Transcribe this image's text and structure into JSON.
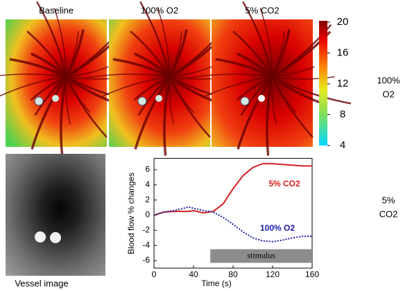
{
  "panels": {
    "titles": [
      "Baseline",
      "100% O2",
      "5% CO2"
    ],
    "vessel_title": "Vessel image"
  },
  "colorbar": {
    "lim": [
      4,
      20
    ],
    "ticks": [
      4,
      8,
      12,
      16,
      20
    ]
  },
  "side_labels": [
    [
      "100%",
      "O2"
    ],
    [
      "5%",
      "CO2"
    ]
  ],
  "chart_data": {
    "type": "line",
    "x": [
      0,
      10,
      20,
      30,
      35,
      40,
      50,
      60,
      70,
      80,
      90,
      100,
      110,
      120,
      130,
      140,
      150,
      160
    ],
    "series": [
      {
        "name": "5% CO2",
        "color": "#d42020",
        "dash": false,
        "values": [
          0,
          0.4,
          0.5,
          0.5,
          0.5,
          0.6,
          0.3,
          0.5,
          1.5,
          3.5,
          5.2,
          6.3,
          6.8,
          6.8,
          6.7,
          6.6,
          6.5,
          6.5
        ]
      },
      {
        "name": "100% O2",
        "color": "#1a1aa8",
        "dash": true,
        "values": [
          0,
          0.4,
          0.6,
          0.9,
          1.1,
          0.9,
          0.6,
          0.4,
          -0.3,
          -1.2,
          -2.2,
          -3.0,
          -3.4,
          -3.5,
          -3.3,
          -3.0,
          -2.8,
          -2.8
        ]
      }
    ],
    "xlim": [
      0,
      160
    ],
    "xticks": [
      0,
      40,
      80,
      120,
      160
    ],
    "ylim": [
      -7,
      7.5
    ],
    "yticks": [
      -6,
      -4,
      -2,
      0,
      2,
      4,
      6
    ],
    "xlabel": "Time (s)",
    "ylabel": "Blood flow % changes",
    "stimulus": {
      "label": "stimulus",
      "x": [
        57,
        160
      ],
      "y": [
        -4.5,
        -6.3
      ]
    }
  }
}
